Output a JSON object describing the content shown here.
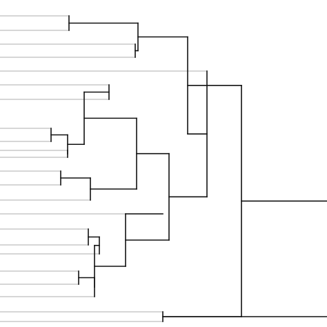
{
  "diagram": {
    "type": "dendrogram",
    "orientation": "leaves-left-root-right",
    "labels_visible": false,
    "colors": {
      "background": "#ffffff",
      "branch": "#111111",
      "leaf_line": "#c8c8c8"
    },
    "tree": {
      "id": "root",
      "children": [
        {
          "id": "upper-cluster",
          "children": [
            {
              "id": "cluster-a",
              "children": [
                {
                  "id": "cluster-a1",
                  "children": [
                    {
                      "id": "leaf-1"
                    },
                    {
                      "id": "leaf-2"
                    }
                  ]
                },
                {
                  "id": "cluster-a2",
                  "children": [
                    {
                      "id": "leaf-3"
                    },
                    {
                      "id": "leaf-4"
                    }
                  ]
                }
              ]
            },
            {
              "id": "cluster-b",
              "children": [
                {
                  "id": "leaf-5"
                },
                {
                  "id": "cluster-c",
                  "children": [
                    {
                      "id": "cluster-d",
                      "children": [
                        {
                          "id": "cluster-e",
                          "children": [
                            {
                              "id": "cluster-f",
                              "children": [
                                {
                                  "id": "leaf-6"
                                },
                                {
                                  "id": "leaf-7"
                                }
                              ]
                            },
                            {
                              "id": "cluster-g",
                              "children": [
                                {
                                  "id": "cluster-h",
                                  "children": [
                                    {
                                      "id": "leaf-8"
                                    },
                                    {
                                      "id": "leaf-9"
                                    }
                                  ]
                                },
                                {
                                  "id": "cluster-i",
                                  "children": [
                                    {
                                      "id": "leaf-10"
                                    },
                                    {
                                      "id": "leaf-11"
                                    }
                                  ]
                                }
                              ]
                            }
                          ]
                        },
                        {
                          "id": "cluster-j",
                          "children": [
                            {
                              "id": "cluster-k",
                              "children": [
                                {
                                  "id": "leaf-12"
                                },
                                {
                                  "id": "leaf-13"
                                }
                              ]
                            },
                            {
                              "id": "leaf-14"
                            }
                          ]
                        }
                      ]
                    },
                    {
                      "id": "cluster-l",
                      "children": [
                        {
                          "id": "leaf-15"
                        },
                        {
                          "id": "cluster-m",
                          "children": [
                            {
                              "id": "cluster-n",
                              "children": [
                                {
                                  "id": "cluster-o",
                                  "children": [
                                    {
                                      "id": "leaf-16"
                                    },
                                    {
                                      "id": "leaf-17"
                                    }
                                  ]
                                },
                                {
                                  "id": "leaf-18"
                                }
                              ]
                            },
                            {
                              "id": "cluster-p",
                              "children": [
                                {
                                  "id": "cluster-q",
                                  "children": [
                                    {
                                      "id": "leaf-19"
                                    },
                                    {
                                      "id": "leaf-20"
                                    }
                                  ]
                                },
                                {
                                  "id": "leaf-21"
                                }
                              ]
                            }
                          ]
                        }
                      ]
                    }
                  ]
                }
              ]
            }
          ]
        },
        {
          "id": "lower-cluster",
          "children": [
            {
              "id": "leaf-22"
            },
            {
              "id": "leaf-23"
            }
          ]
        }
      ]
    }
  }
}
